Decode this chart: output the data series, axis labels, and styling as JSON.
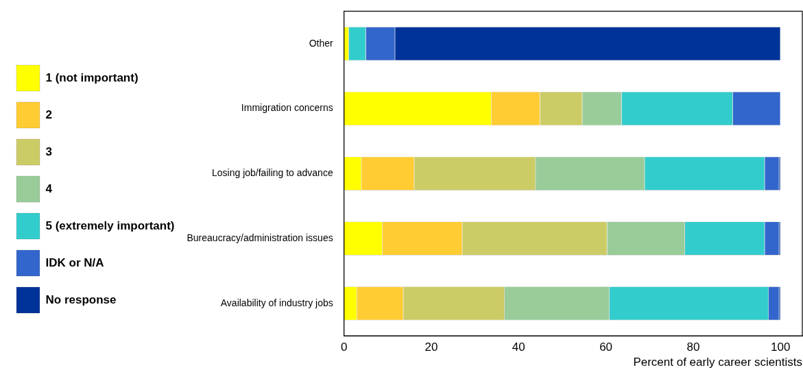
{
  "chart_data": {
    "type": "bar",
    "orientation": "horizontal",
    "stacked": true,
    "categories": [
      "Other",
      "Immigration concerns",
      "Losing job/failing to advance",
      "Bureaucracy/administration issues",
      "Availability of industry jobs"
    ],
    "series": [
      {
        "name": "1 (not important)",
        "color": "#ffff00",
        "values": [
          1.1,
          33.8,
          4.0,
          8.8,
          3.0
        ]
      },
      {
        "name": "2",
        "color": "#ffcc33",
        "values": [
          0,
          11.1,
          12.1,
          18.3,
          10.6
        ]
      },
      {
        "name": "3",
        "color": "#cccc66",
        "values": [
          0,
          9.7,
          27.8,
          33.2,
          23.2
        ]
      },
      {
        "name": "4",
        "color": "#99cc99",
        "values": [
          0,
          9.0,
          25.0,
          17.8,
          24.0
        ]
      },
      {
        "name": "5 (extremely important)",
        "color": "#33cccc",
        "values": [
          3.9,
          25.5,
          27.5,
          18.3,
          36.5
        ]
      },
      {
        "name": "IDK or N/A",
        "color": "#3366cc",
        "values": [
          6.7,
          10.9,
          3.3,
          3.3,
          2.4
        ]
      },
      {
        "name": "No response",
        "color": "#003399",
        "values": [
          88.3,
          0,
          0.3,
          0.3,
          0.3
        ]
      }
    ],
    "xlabel": "Percent of early career scientists",
    "xlim": [
      0,
      105
    ],
    "xticks": [
      0,
      20,
      40,
      60,
      80,
      100
    ],
    "grid": false,
    "legend": "left"
  }
}
